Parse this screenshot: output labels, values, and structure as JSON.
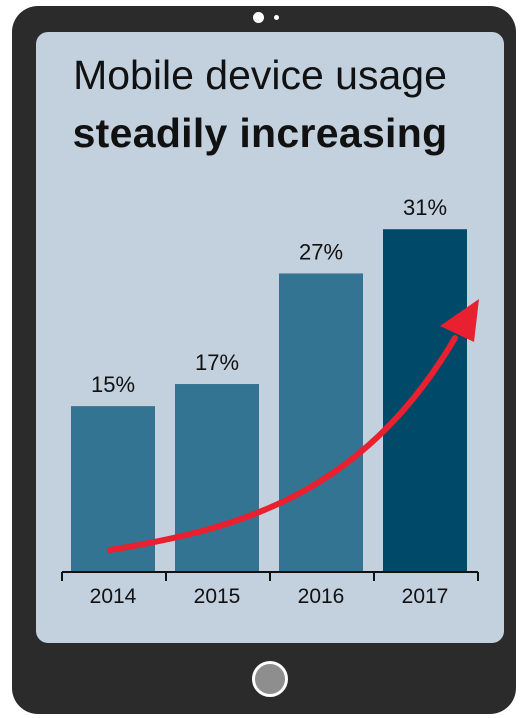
{
  "title_line1": "Mobile device usage",
  "title_line2": "steadily increasing",
  "chart_data": {
    "type": "bar",
    "categories": [
      "2014",
      "2015",
      "2016",
      "2017"
    ],
    "values": [
      15,
      17,
      27,
      31
    ],
    "value_labels": [
      "15%",
      "17%",
      "27%",
      "31%"
    ],
    "ylim": [
      0,
      35
    ],
    "grid": false,
    "legend": "none",
    "bar_colors": [
      "#347493",
      "#347493",
      "#347493",
      "#004968"
    ],
    "trend_arrow_color": "#e8202f",
    "xlabel": "",
    "ylabel": ""
  },
  "colors": {
    "device_body": "#2b2b2b",
    "screen_background": "#c3d1df",
    "home_button": "#8e8e8e"
  }
}
